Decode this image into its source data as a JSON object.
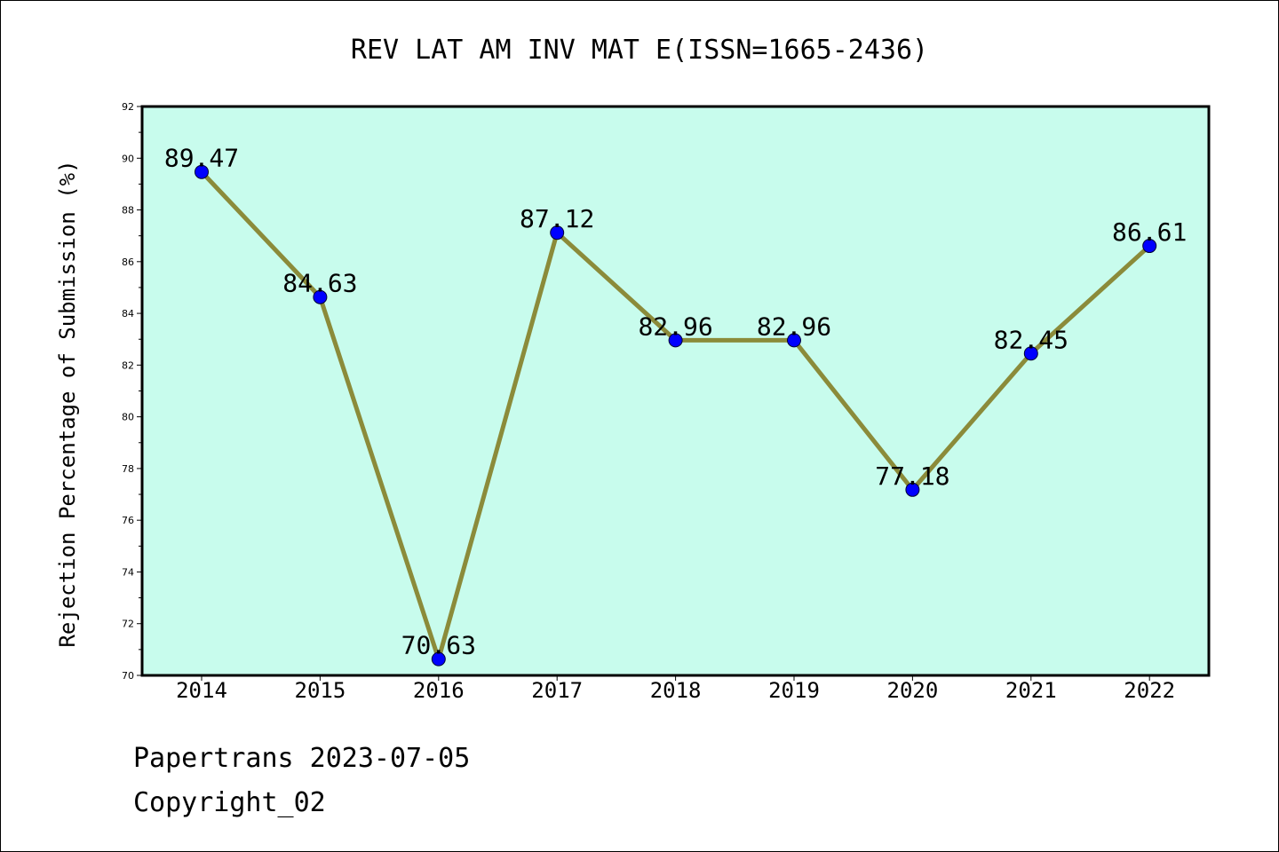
{
  "chart_data": {
    "type": "line",
    "title": "REV LAT AM INV MAT E(ISSN=1665-2436)",
    "ylabel": "Rejection Percentage of Submission (%)",
    "xlabel": "",
    "categories": [
      "2014",
      "2015",
      "2016",
      "2017",
      "2018",
      "2019",
      "2020",
      "2021",
      "2022"
    ],
    "values": [
      89.47,
      84.63,
      70.63,
      87.12,
      82.96,
      82.96,
      77.18,
      82.45,
      86.61
    ],
    "data_labels": [
      "89.47",
      "84.63",
      "70.63",
      "87.12",
      "82.96",
      "82.96",
      "77.18",
      "82.45",
      "86.61"
    ],
    "ylim": [
      70,
      92
    ],
    "yticks": [
      70,
      72,
      74,
      76,
      78,
      80,
      82,
      84,
      86,
      88,
      90,
      92
    ],
    "ytick_labels": [
      "70",
      "72",
      "74",
      "76",
      "78",
      "80",
      "82",
      "84",
      "86",
      "88",
      "90",
      "92"
    ],
    "grid": false,
    "legend": "none",
    "colors": {
      "plot_background": "#c8fced",
      "line": "#8b8b3a",
      "marker": "#0000ff",
      "axis": "#000000"
    }
  },
  "footer": {
    "line1": "Papertrans 2023-07-05",
    "line2": "Copyright_02"
  }
}
